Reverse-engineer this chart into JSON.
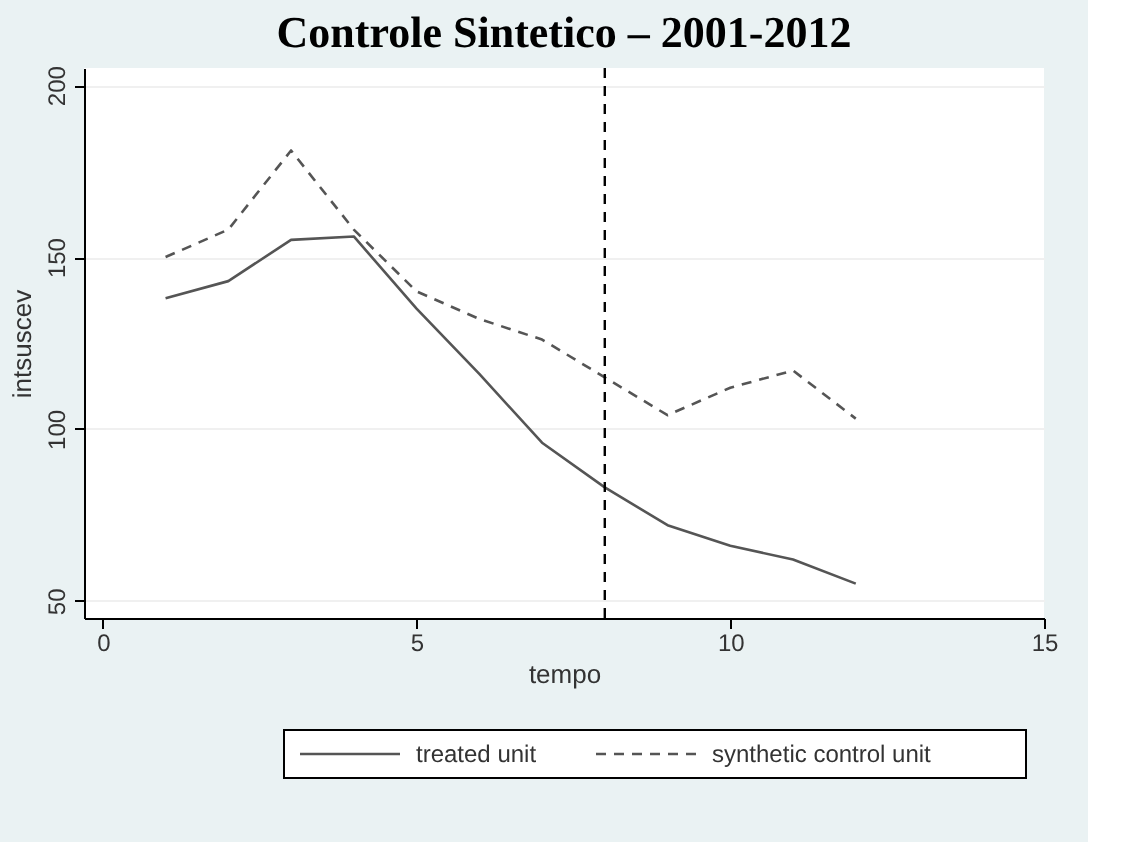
{
  "chart_data": {
    "type": "line",
    "title": "Controle Sintetico – 2001-2012",
    "xlabel": "tempo",
    "ylabel": "intsuscev",
    "x": [
      1,
      2,
      3,
      4,
      5,
      6,
      7,
      8,
      9,
      10,
      11,
      12
    ],
    "series": [
      {
        "name": "treated unit",
        "color": "#555555",
        "line_style": "solid",
        "values": [
          138,
          143,
          155,
          156,
          135,
          116,
          96,
          83,
          72,
          66,
          62,
          55
        ]
      },
      {
        "name": "synthetic control unit",
        "color": "#555555",
        "line_style": "dashed",
        "values": [
          150,
          158,
          181,
          158,
          140,
          132,
          126,
          115,
          104,
          112,
          117,
          103
        ]
      }
    ],
    "xlim": [
      -0.3,
      15
    ],
    "xticks": [
      0,
      5,
      10,
      15
    ],
    "ylim": [
      45,
      205
    ],
    "yticks": [
      50,
      100,
      150,
      200
    ],
    "ref_lines": [
      {
        "axis": "x",
        "value": 8,
        "color": "#000000",
        "line_style": "dashed"
      }
    ],
    "grid": "y",
    "legend": "bottom",
    "marker": "none"
  }
}
